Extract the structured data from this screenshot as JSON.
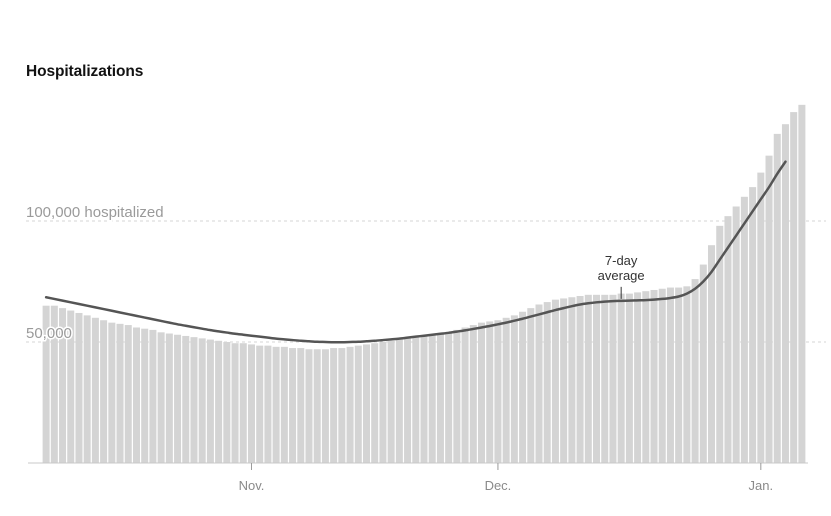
{
  "chart_data": {
    "type": "bar",
    "title": "Hospitalizations",
    "xlabel": "",
    "ylabel": "",
    "ylim": [
      0,
      150000
    ],
    "grid": "horizontal-dashed",
    "y_ticks": [
      {
        "value": 50000,
        "label": "50,000"
      },
      {
        "value": 100000,
        "label": "100,000 hospitalized"
      }
    ],
    "x_ticks": [
      {
        "day": 25,
        "label": "Nov."
      },
      {
        "day": 55,
        "label": "Dec."
      },
      {
        "day": 87,
        "label": "Jan."
      }
    ],
    "series": [
      {
        "type": "bar",
        "values": [
          65000,
          65000,
          64000,
          63000,
          62000,
          61000,
          60000,
          59000,
          58000,
          57500,
          57000,
          56000,
          55500,
          55000,
          54000,
          53500,
          53000,
          52500,
          52000,
          51500,
          51000,
          50500,
          50000,
          49500,
          49500,
          49000,
          48500,
          48500,
          48000,
          48000,
          47500,
          47500,
          47000,
          47000,
          47000,
          47500,
          47500,
          48000,
          48500,
          49000,
          49500,
          50000,
          50500,
          51000,
          51500,
          52000,
          52500,
          53000,
          53500,
          54000,
          55000,
          56000,
          57000,
          58000,
          58500,
          59000,
          60000,
          61000,
          62500,
          64000,
          65500,
          66500,
          67500,
          68000,
          68500,
          69000,
          69500,
          69500,
          69500,
          69500,
          70000,
          70000,
          70500,
          71000,
          71500,
          72000,
          72500,
          72500,
          73000,
          76000,
          82000,
          90000,
          98000,
          102000,
          106000,
          110000,
          114000,
          120000,
          127000,
          136000,
          140000,
          145000,
          148000
        ]
      },
      {
        "type": "line",
        "name": "7-day average",
        "values": [
          68500,
          67800,
          67100,
          66400,
          65700,
          65000,
          64300,
          63600,
          62900,
          62200,
          61500,
          60800,
          60100,
          59400,
          58700,
          58000,
          57300,
          56700,
          56100,
          55500,
          54900,
          54400,
          53900,
          53400,
          53000,
          52600,
          52200,
          51800,
          51400,
          51100,
          50800,
          50500,
          50300,
          50100,
          50000,
          49900,
          49900,
          50000,
          50100,
          50300,
          50500,
          50800,
          51100,
          51400,
          51800,
          52200,
          52600,
          53000,
          53400,
          53800,
          54300,
          54800,
          55400,
          56000,
          56600,
          57300,
          58000,
          58800,
          59600,
          60500,
          61400,
          62300,
          63200,
          64000,
          64800,
          65500,
          66000,
          66400,
          66700,
          66900,
          67000,
          67100,
          67200,
          67300,
          67500,
          67800,
          68200,
          68800,
          70000,
          72000,
          75000,
          79000,
          84000,
          89000,
          94000,
          99000,
          104000,
          109000,
          114000,
          119500,
          124500
        ]
      }
    ],
    "annotations": [
      {
        "text_line1": "7-day",
        "text_line2": "average",
        "day": 70
      }
    ]
  }
}
